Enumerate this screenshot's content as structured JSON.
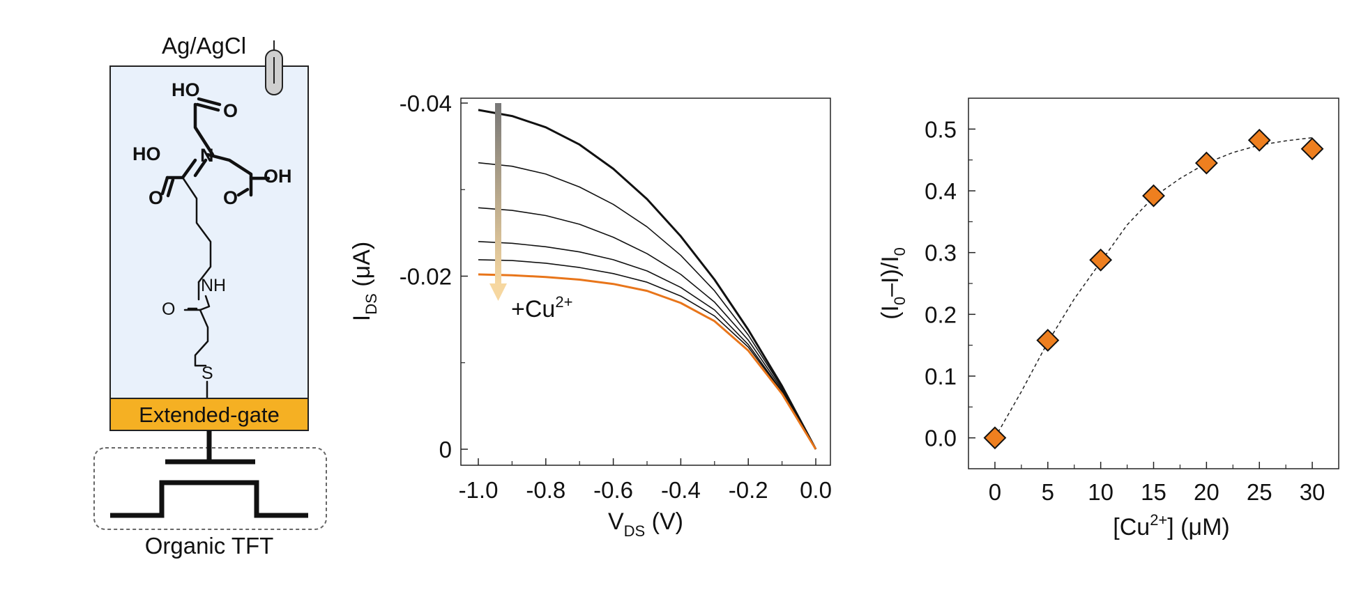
{
  "schematic": {
    "electrode_label": "Ag/AgCl",
    "gate_label": "Extended-gate",
    "device_label": "Organic TFT",
    "atoms": {
      "ho1": "HO",
      "o1": "O",
      "ho2": "HO",
      "n": "N",
      "o2": "O",
      "o3": "O",
      "oh": "OH",
      "nh": "NH",
      "o4": "O",
      "s": "S"
    },
    "colors": {
      "electrolyte": "#e9f1fb",
      "gate": "#f5b023",
      "ink": "#111111"
    }
  },
  "chart_data": [
    {
      "type": "line",
      "xlabel_main": "V",
      "xlabel_sub": "DS",
      "xlabel_unit": " (V)",
      "ylabel_main": "I",
      "ylabel_sub": "DS",
      "ylabel_unit": " (μA)",
      "xlim": [
        -1.0,
        0.0
      ],
      "ylim": [
        0,
        -0.04
      ],
      "xticks": [
        -1.0,
        -0.8,
        -0.6,
        -0.4,
        -0.2,
        0.0
      ],
      "xtick_labels": [
        "-1.0",
        "-0.8",
        "-0.6",
        "-0.4",
        "-0.2",
        "0.0"
      ],
      "yticks": [
        -0.04,
        -0.02,
        0
      ],
      "ytick_labels": [
        "-0.04",
        "-0.02",
        "0"
      ],
      "annotation": {
        "text": "+Cu",
        "sup": "2+"
      },
      "series": [
        {
          "color": "#111111",
          "x": [
            -1.0,
            -0.9,
            -0.8,
            -0.7,
            -0.6,
            -0.5,
            -0.4,
            -0.3,
            -0.2,
            -0.1,
            0.0
          ],
          "y": [
            -0.0392,
            -0.0385,
            -0.0372,
            -0.0352,
            -0.0324,
            -0.0289,
            -0.0246,
            -0.0196,
            -0.0138,
            -0.0073,
            0.0
          ]
        },
        {
          "color": "#111111",
          "x": [
            -1.0,
            -0.9,
            -0.8,
            -0.7,
            -0.6,
            -0.5,
            -0.4,
            -0.3,
            -0.2,
            -0.1,
            0.0
          ],
          "y": [
            -0.0331,
            -0.0327,
            -0.0318,
            -0.0303,
            -0.0283,
            -0.0257,
            -0.0224,
            -0.0183,
            -0.0132,
            -0.0071,
            0.0
          ]
        },
        {
          "color": "#111111",
          "x": [
            -1.0,
            -0.9,
            -0.8,
            -0.7,
            -0.6,
            -0.5,
            -0.4,
            -0.3,
            -0.2,
            -0.1,
            0.0
          ],
          "y": [
            -0.0279,
            -0.0276,
            -0.027,
            -0.026,
            -0.0245,
            -0.0226,
            -0.0202,
            -0.017,
            -0.0126,
            -0.0069,
            0.0
          ]
        },
        {
          "color": "#111111",
          "x": [
            -1.0,
            -0.9,
            -0.8,
            -0.7,
            -0.6,
            -0.5,
            -0.4,
            -0.3,
            -0.2,
            -0.1,
            0.0
          ],
          "y": [
            -0.024,
            -0.0238,
            -0.0234,
            -0.0228,
            -0.0219,
            -0.0206,
            -0.0187,
            -0.0161,
            -0.0121,
            -0.0067,
            0.0
          ]
        },
        {
          "color": "#111111",
          "x": [
            -1.0,
            -0.9,
            -0.8,
            -0.7,
            -0.6,
            -0.5,
            -0.4,
            -0.3,
            -0.2,
            -0.1,
            0.0
          ],
          "y": [
            -0.0219,
            -0.0218,
            -0.0215,
            -0.021,
            -0.0203,
            -0.0193,
            -0.0177,
            -0.0154,
            -0.0118,
            -0.0066,
            0.0
          ]
        },
        {
          "color": "#e8751a",
          "x": [
            -1.0,
            -0.9,
            -0.8,
            -0.7,
            -0.6,
            -0.5,
            -0.4,
            -0.3,
            -0.2,
            -0.1,
            0.0
          ],
          "y": [
            -0.0202,
            -0.0201,
            -0.0199,
            -0.0196,
            -0.0191,
            -0.0183,
            -0.0169,
            -0.0148,
            -0.0114,
            -0.0064,
            0.0
          ]
        }
      ]
    },
    {
      "type": "scatter",
      "xlabel": "[Cu",
      "xlabel_sup": "2+",
      "xlabel_unit": "] (μM)",
      "ylabel_pre": "(I",
      "ylabel_sub1": "0",
      "ylabel_mid": "–I)/I",
      "ylabel_sub2": "0",
      "xlim": [
        -2.5,
        32.5
      ],
      "ylim": [
        -0.05,
        0.55
      ],
      "xticks": [
        0,
        5,
        10,
        15,
        20,
        25,
        30
      ],
      "xtick_labels": [
        "0",
        "5",
        "10",
        "15",
        "20",
        "25",
        "30"
      ],
      "yticks": [
        0.0,
        0.1,
        0.2,
        0.3,
        0.4,
        0.5
      ],
      "ytick_labels": [
        "0.0",
        "0.1",
        "0.2",
        "0.3",
        "0.4",
        "0.5"
      ],
      "points": {
        "x": [
          0,
          5,
          10,
          15,
          20,
          25,
          30
        ],
        "y": [
          0.0,
          0.158,
          0.288,
          0.392,
          0.445,
          0.482,
          0.468
        ]
      },
      "fit": {
        "x": [
          0,
          2.5,
          5,
          7.5,
          10,
          12.5,
          15,
          17.5,
          20,
          22.5,
          25,
          27.5,
          30
        ],
        "y": [
          0.0,
          0.075,
          0.155,
          0.225,
          0.285,
          0.345,
          0.39,
          0.42,
          0.445,
          0.462,
          0.474,
          0.481,
          0.486
        ]
      },
      "marker_color": "#ee7f1f"
    }
  ]
}
